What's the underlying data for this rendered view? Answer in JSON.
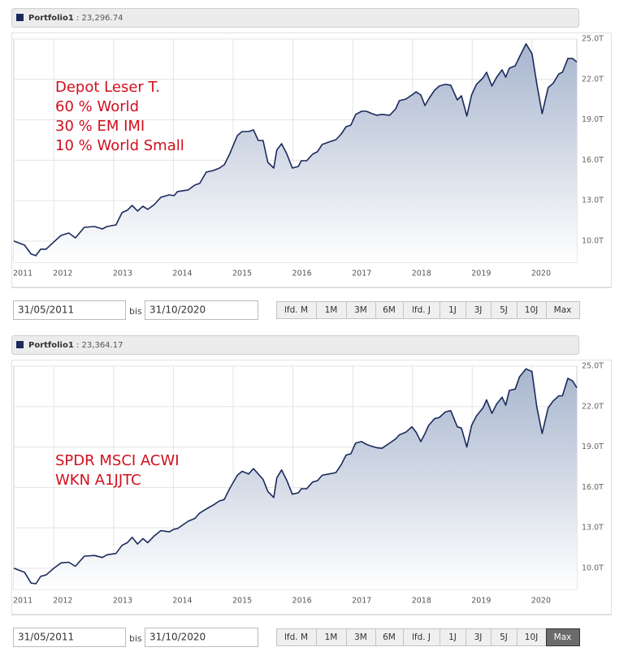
{
  "chart_data": [
    {
      "type": "line",
      "annotation": [
        "Depot Leser T.",
        "60 % World",
        "30 % EM IMI",
        "10 % World Small"
      ],
      "x": [
        2011.33,
        2011.51,
        2011.62,
        2011.7,
        2011.78,
        2011.87,
        2012.0,
        2012.12,
        2012.25,
        2012.36,
        2012.51,
        2012.68,
        2012.81,
        2012.89,
        2013.04,
        2013.14,
        2013.23,
        2013.31,
        2013.4,
        2013.49,
        2013.57,
        2013.68,
        2013.79,
        2013.93,
        2014.01,
        2014.07,
        2014.25,
        2014.36,
        2014.44,
        2014.55,
        2014.67,
        2014.77,
        2014.85,
        2014.94,
        2015.07,
        2015.15,
        2015.26,
        2015.34,
        2015.42,
        2015.5,
        2015.58,
        2015.68,
        2015.73,
        2015.81,
        2015.9,
        2015.99,
        2016.09,
        2016.14,
        2016.23,
        2016.33,
        2016.41,
        2016.49,
        2016.6,
        2016.72,
        2016.81,
        2016.89,
        2016.97,
        2017.05,
        2017.15,
        2017.23,
        2017.32,
        2017.4,
        2017.49,
        2017.62,
        2017.72,
        2017.78,
        2017.89,
        2017.99,
        2018.06,
        2018.14,
        2018.21,
        2018.27,
        2018.37,
        2018.45,
        2018.55,
        2018.64,
        2018.75,
        2018.82,
        2018.91,
        2018.99,
        2019.07,
        2019.18,
        2019.24,
        2019.33,
        2019.41,
        2019.5,
        2019.56,
        2019.62,
        2019.72,
        2019.79,
        2019.9,
        2020.0,
        2020.08,
        2020.17,
        2020.27,
        2020.35,
        2020.45,
        2020.51,
        2020.6,
        2020.68,
        2020.75
      ],
      "series": [
        {
          "name": "Portfolio1",
          "color": "#1b2a5c",
          "values": [
            10000,
            9700,
            9040,
            8920,
            9400,
            9400,
            9940,
            10420,
            10600,
            10240,
            11020,
            11080,
            10900,
            11080,
            11200,
            12110,
            12290,
            12650,
            12230,
            12590,
            12350,
            12710,
            13250,
            13430,
            13370,
            13680,
            13800,
            14160,
            14280,
            15120,
            15240,
            15420,
            15660,
            16450,
            17830,
            18130,
            18130,
            18250,
            17470,
            17470,
            15840,
            15420,
            16750,
            17230,
            16450,
            15420,
            15540,
            15960,
            15960,
            16450,
            16630,
            17170,
            17350,
            17530,
            17950,
            18490,
            18610,
            19400,
            19640,
            19640,
            19460,
            19340,
            19400,
            19340,
            19820,
            20420,
            20540,
            20840,
            21080,
            20840,
            20060,
            20540,
            21200,
            21510,
            21630,
            21570,
            20480,
            20780,
            19280,
            20840,
            21630,
            22110,
            22530,
            21510,
            22170,
            22710,
            22170,
            22830,
            23010,
            23670,
            24640,
            23920,
            21690,
            19460,
            21390,
            21690,
            22410,
            22530,
            23550,
            23550,
            23300
          ]
        }
      ],
      "xlim": [
        2011.33,
        2020.75
      ],
      "xticks": [
        {
          "value": 2011.33,
          "label": "2011"
        },
        2012,
        2013,
        2014,
        2015,
        2016,
        2017,
        2018,
        2019,
        2020
      ],
      "ylim": [
        8430,
        25000
      ],
      "yticks": [
        {
          "value": 10000,
          "label": "10.0T"
        },
        {
          "value": 13000,
          "label": "13.0T"
        },
        {
          "value": 16000,
          "label": "16.0T"
        },
        {
          "value": 19000,
          "label": "19.0T"
        },
        {
          "value": 22000,
          "label": "22.0T"
        },
        {
          "value": 25000,
          "label": "25.0T"
        }
      ],
      "grid": true
    },
    {
      "type": "line",
      "annotation": [
        "SPDR MSCI ACWI",
        "WKN A1JJTC"
      ],
      "x": [
        2011.33,
        2011.51,
        2011.62,
        2011.7,
        2011.78,
        2011.87,
        2012.0,
        2012.12,
        2012.25,
        2012.36,
        2012.51,
        2012.68,
        2012.81,
        2012.89,
        2013.04,
        2013.14,
        2013.23,
        2013.31,
        2013.4,
        2013.49,
        2013.57,
        2013.68,
        2013.79,
        2013.93,
        2014.01,
        2014.07,
        2014.25,
        2014.36,
        2014.44,
        2014.55,
        2014.67,
        2014.77,
        2014.85,
        2014.94,
        2015.07,
        2015.15,
        2015.26,
        2015.34,
        2015.42,
        2015.5,
        2015.58,
        2015.68,
        2015.73,
        2015.81,
        2015.9,
        2015.99,
        2016.09,
        2016.14,
        2016.23,
        2016.33,
        2016.41,
        2016.49,
        2016.6,
        2016.72,
        2016.81,
        2016.89,
        2016.97,
        2017.05,
        2017.15,
        2017.23,
        2017.32,
        2017.4,
        2017.49,
        2017.62,
        2017.72,
        2017.78,
        2017.89,
        2017.99,
        2018.06,
        2018.14,
        2018.21,
        2018.27,
        2018.37,
        2018.45,
        2018.55,
        2018.64,
        2018.75,
        2018.82,
        2018.91,
        2018.99,
        2019.07,
        2019.18,
        2019.24,
        2019.33,
        2019.41,
        2019.5,
        2019.56,
        2019.62,
        2019.72,
        2019.79,
        2019.9,
        2020.0,
        2020.08,
        2020.17,
        2020.27,
        2020.35,
        2020.45,
        2020.51,
        2020.6,
        2020.68,
        2020.75
      ],
      "series": [
        {
          "name": "Portfolio1",
          "color": "#1b2a5c",
          "values": [
            10000,
            9700,
            8900,
            8850,
            9400,
            9500,
            10000,
            10400,
            10450,
            10150,
            10900,
            10950,
            10800,
            11000,
            11100,
            11700,
            11900,
            12300,
            11800,
            12200,
            11900,
            12400,
            12800,
            12700,
            12900,
            12950,
            13500,
            13700,
            14100,
            14400,
            14700,
            15000,
            15100,
            15900,
            16900,
            17200,
            17000,
            17400,
            17000,
            16600,
            15700,
            15250,
            16700,
            17300,
            16500,
            15500,
            15600,
            15900,
            15900,
            16400,
            16500,
            16900,
            17000,
            17100,
            17700,
            18400,
            18500,
            19300,
            19400,
            19200,
            19050,
            18950,
            18900,
            19300,
            19600,
            19900,
            20100,
            20500,
            20100,
            19400,
            20000,
            20600,
            21100,
            21200,
            21600,
            21700,
            20500,
            20400,
            19000,
            20600,
            21300,
            21900,
            22500,
            21500,
            22200,
            22700,
            22100,
            23200,
            23300,
            24200,
            24800,
            24600,
            22000,
            20000,
            21900,
            22400,
            22800,
            22800,
            24100,
            23900,
            23400
          ]
        }
      ],
      "xlim": [
        2011.33,
        2020.75
      ],
      "xticks": [
        {
          "value": 2011.33,
          "label": "2011"
        },
        2012,
        2013,
        2014,
        2015,
        2016,
        2017,
        2018,
        2019,
        2020
      ],
      "ylim": [
        8430,
        25000
      ],
      "yticks": [
        {
          "value": 10000,
          "label": "10.0T"
        },
        {
          "value": 13000,
          "label": "13.0T"
        },
        {
          "value": 16000,
          "label": "16.0T"
        },
        {
          "value": 19000,
          "label": "19.0T"
        },
        {
          "value": 22000,
          "label": "22.0T"
        },
        {
          "value": 25000,
          "label": "25.0T"
        }
      ],
      "grid": true
    }
  ],
  "panels": [
    {
      "legend_value": ": 23,296.74",
      "from": "31/05/2011",
      "sep": "bis",
      "to": "31/10/2020",
      "buttons": [
        "lfd. M",
        "1M",
        "3M",
        "6M",
        "lfd. J",
        "1J",
        "3J",
        "5J",
        "10J",
        "Max"
      ]
    },
    {
      "legend_value": ": 23,364.17",
      "from": "31/05/2011",
      "sep": "bis",
      "to": "31/10/2020",
      "buttons": [
        "lfd. M",
        "1M",
        "3M",
        "6M",
        "lfd. J",
        "1J",
        "3J",
        "5J",
        "10J",
        "Max"
      ],
      "selected": "Max"
    }
  ]
}
